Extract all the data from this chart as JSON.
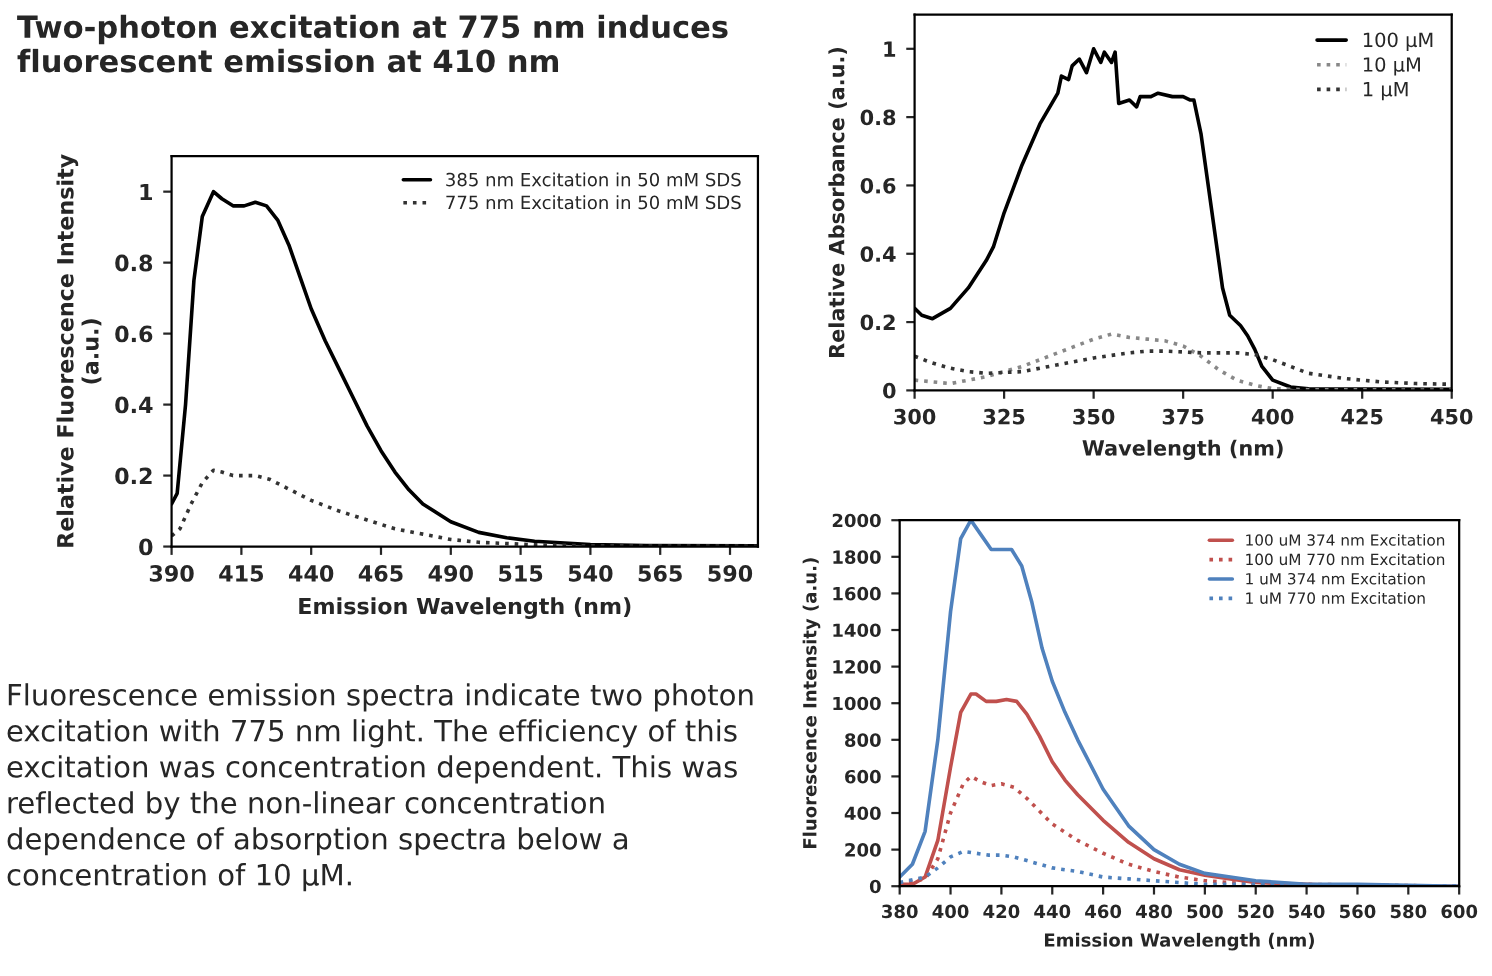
{
  "chart_data": [
    {
      "type": "line",
      "title": "Two-photon excitation at 775 nm induces fluorescent emission at 410 nm",
      "xlabel": "Emission Wavelength (nm)",
      "ylabel": "Relative Fluorescence Intensity\n(a.u.)",
      "xlim": [
        390,
        600
      ],
      "xticks": [
        390,
        415,
        440,
        465,
        490,
        515,
        540,
        565,
        590
      ],
      "ylim": [
        0,
        1.1
      ],
      "yticks": [
        0,
        0.2,
        0.4,
        0.6,
        0.8,
        1
      ],
      "legend": "top right",
      "grid": false,
      "marker": "none",
      "annotations": [
        "Fluorescence emission spectra indicate two photon excitation with 775 nm light. The efficiency of this excitation was concentration dependent. This was reflected by the non-linear concentration dependence of absorption spectra below a concentration of 10 µM."
      ],
      "series": [
        {
          "name": "385 nm Excitation in 50 mM SDS",
          "color": "#000000",
          "line_style": "solid",
          "x": [
            390,
            392,
            395,
            398,
            401,
            405,
            408,
            412,
            416,
            420,
            424,
            428,
            432,
            436,
            440,
            445,
            450,
            455,
            460,
            465,
            470,
            475,
            480,
            490,
            500,
            510,
            520,
            540,
            560,
            600
          ],
          "values": [
            0.12,
            0.15,
            0.4,
            0.75,
            0.93,
            1.0,
            0.98,
            0.96,
            0.96,
            0.97,
            0.96,
            0.92,
            0.85,
            0.76,
            0.67,
            0.58,
            0.5,
            0.42,
            0.34,
            0.27,
            0.21,
            0.16,
            0.12,
            0.07,
            0.04,
            0.025,
            0.015,
            0.006,
            0.003,
            0.002
          ]
        },
        {
          "name": "775 nm Excitation in 50 mM SDS",
          "color": "#333333",
          "line_style": "dotted",
          "x": [
            390,
            393,
            397,
            401,
            405,
            408,
            412,
            416,
            420,
            425,
            430,
            440,
            450,
            460,
            470,
            480,
            490,
            500,
            520,
            540,
            600
          ],
          "values": [
            0.03,
            0.05,
            0.12,
            0.18,
            0.215,
            0.21,
            0.2,
            0.2,
            0.2,
            0.19,
            0.17,
            0.13,
            0.1,
            0.075,
            0.05,
            0.035,
            0.02,
            0.012,
            0.005,
            0.002,
            0.001
          ]
        }
      ]
    },
    {
      "type": "line",
      "xlabel": "Wavelength (nm)",
      "ylabel": "Relative Absorbance (a.u.)",
      "xlim": [
        300,
        450
      ],
      "xticks": [
        300,
        325,
        350,
        375,
        400,
        425,
        450
      ],
      "ylim": [
        0,
        1.1
      ],
      "yticks": [
        0,
        0.2,
        0.4,
        0.6,
        0.8,
        1
      ],
      "legend": "top right",
      "grid": false,
      "marker": "none",
      "series": [
        {
          "name": "100 µM",
          "color": "#000000",
          "line_style": "solid",
          "x": [
            300,
            302,
            305,
            310,
            315,
            320,
            322,
            325,
            330,
            335,
            340,
            341,
            343,
            344,
            346,
            348,
            350,
            352,
            353,
            355,
            356,
            357,
            360,
            362,
            363,
            366,
            368,
            372,
            375,
            377,
            378,
            380,
            382,
            384,
            386,
            388,
            391,
            393,
            395,
            397,
            400,
            405,
            410,
            450
          ],
          "values": [
            0.24,
            0.22,
            0.21,
            0.24,
            0.3,
            0.38,
            0.42,
            0.52,
            0.66,
            0.78,
            0.87,
            0.92,
            0.91,
            0.95,
            0.97,
            0.93,
            1.0,
            0.96,
            0.99,
            0.96,
            0.99,
            0.84,
            0.85,
            0.83,
            0.86,
            0.86,
            0.87,
            0.86,
            0.86,
            0.85,
            0.85,
            0.75,
            0.6,
            0.45,
            0.3,
            0.22,
            0.19,
            0.16,
            0.12,
            0.07,
            0.03,
            0.01,
            0.005,
            0.003
          ]
        },
        {
          "name": "10 µM",
          "color": "#888888",
          "line_style": "dotted",
          "x": [
            300,
            310,
            320,
            330,
            340,
            350,
            355,
            360,
            365,
            370,
            375,
            380,
            385,
            390,
            395,
            400,
            410,
            450
          ],
          "values": [
            0.03,
            0.02,
            0.04,
            0.07,
            0.11,
            0.15,
            0.165,
            0.155,
            0.15,
            0.145,
            0.13,
            0.1,
            0.06,
            0.03,
            0.015,
            0.005,
            0.002,
            0.001
          ]
        },
        {
          "name": "1 µM",
          "color": "#333333",
          "line_style": "dotted",
          "x": [
            300,
            305,
            310,
            315,
            320,
            330,
            340,
            350,
            360,
            365,
            370,
            380,
            385,
            390,
            395,
            400,
            405,
            410,
            420,
            430,
            440,
            450
          ],
          "values": [
            0.1,
            0.08,
            0.065,
            0.055,
            0.05,
            0.055,
            0.075,
            0.095,
            0.11,
            0.115,
            0.115,
            0.11,
            0.11,
            0.11,
            0.105,
            0.09,
            0.07,
            0.05,
            0.035,
            0.025,
            0.02,
            0.018
          ]
        }
      ]
    },
    {
      "type": "line",
      "xlabel": "Emission Wavelength (nm)",
      "ylabel": "Fluorescence Intensity (a.u.)",
      "xlim": [
        380,
        600
      ],
      "xticks": [
        380,
        400,
        420,
        440,
        460,
        480,
        500,
        520,
        540,
        560,
        580,
        600
      ],
      "ylim": [
        0,
        2000
      ],
      "yticks": [
        0,
        200,
        400,
        600,
        800,
        1000,
        1200,
        1400,
        1600,
        1800,
        2000
      ],
      "legend": "top right",
      "grid": false,
      "marker": "none",
      "series": [
        {
          "name": "100 uM 374 nm Excitation",
          "color": "#c0504d",
          "line_style": "solid",
          "x": [
            380,
            385,
            390,
            395,
            400,
            404,
            408,
            410,
            414,
            418,
            422,
            426,
            430,
            435,
            440,
            445,
            450,
            460,
            470,
            480,
            490,
            500,
            510,
            520,
            540,
            560,
            600
          ],
          "values": [
            10,
            10,
            50,
            250,
            650,
            950,
            1050,
            1050,
            1010,
            1010,
            1020,
            1010,
            940,
            820,
            680,
            580,
            500,
            360,
            240,
            150,
            90,
            60,
            40,
            20,
            10,
            0,
            0
          ]
        },
        {
          "name": "100 uM 770 nm Excitation",
          "color": "#c0504d",
          "line_style": "dotted",
          "x": [
            380,
            390,
            395,
            400,
            405,
            408,
            412,
            416,
            420,
            425,
            430,
            440,
            450,
            460,
            470,
            480,
            490,
            500,
            520,
            540,
            600
          ],
          "values": [
            10,
            40,
            150,
            400,
            560,
            600,
            570,
            550,
            560,
            540,
            480,
            340,
            250,
            180,
            120,
            80,
            50,
            30,
            10,
            10,
            0
          ]
        },
        {
          "name": "1 uM 374 nm Excitation",
          "color": "#4f81bd",
          "line_style": "solid",
          "x": [
            380,
            385,
            390,
            395,
            400,
            404,
            408,
            412,
            416,
            420,
            424,
            428,
            432,
            436,
            440,
            445,
            450,
            460,
            470,
            480,
            490,
            500,
            510,
            520,
            540,
            560,
            600
          ],
          "values": [
            50,
            120,
            300,
            800,
            1500,
            1900,
            2000,
            1920,
            1840,
            1840,
            1840,
            1750,
            1550,
            1300,
            1120,
            950,
            800,
            530,
            330,
            200,
            120,
            70,
            50,
            30,
            10,
            10,
            0
          ]
        },
        {
          "name": "1 uM 770 nm Excitation",
          "color": "#4f81bd",
          "line_style": "dotted",
          "x": [
            380,
            390,
            395,
            400,
            405,
            410,
            415,
            420,
            425,
            430,
            440,
            450,
            460,
            470,
            480,
            500,
            520,
            600
          ],
          "values": [
            20,
            50,
            100,
            160,
            190,
            180,
            170,
            170,
            160,
            140,
            100,
            80,
            50,
            40,
            30,
            10,
            10,
            0
          ]
        }
      ]
    }
  ]
}
